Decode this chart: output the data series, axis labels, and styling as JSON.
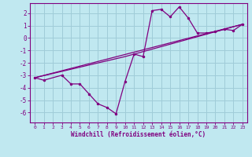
{
  "title": "",
  "xlabel": "Windchill (Refroidissement éolien,°C)",
  "bg_color": "#c0e8f0",
  "grid_color": "#a0ccd8",
  "line_color": "#800080",
  "xlim": [
    -0.5,
    23.5
  ],
  "ylim": [
    -6.8,
    2.8
  ],
  "xticks": [
    0,
    1,
    2,
    3,
    4,
    5,
    6,
    7,
    8,
    9,
    10,
    11,
    12,
    13,
    14,
    15,
    16,
    17,
    18,
    19,
    20,
    21,
    22,
    23
  ],
  "yticks": [
    -6,
    -5,
    -4,
    -3,
    -2,
    -1,
    0,
    1,
    2
  ],
  "series1_x": [
    0,
    1,
    3,
    4,
    5,
    6,
    7,
    8,
    9,
    10,
    11,
    12,
    13,
    14,
    15,
    16,
    17,
    18,
    19,
    20,
    21,
    22,
    23
  ],
  "series1_y": [
    -3.2,
    -3.4,
    -3.0,
    -3.7,
    -3.7,
    -4.5,
    -5.3,
    -5.6,
    -6.1,
    -3.5,
    -1.3,
    -1.5,
    2.2,
    2.3,
    1.7,
    2.5,
    1.6,
    0.4,
    0.4,
    0.5,
    0.7,
    0.6,
    1.1
  ],
  "series2_x": [
    0,
    23
  ],
  "series2_y": [
    -3.2,
    1.1
  ],
  "series3_x": [
    0,
    10,
    23
  ],
  "series3_y": [
    -3.2,
    -1.5,
    1.1
  ]
}
